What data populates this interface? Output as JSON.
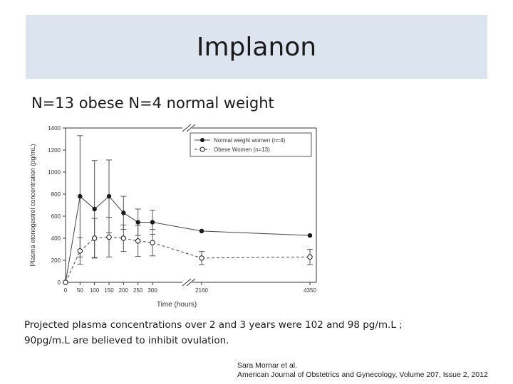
{
  "slide": {
    "title": "Implanon",
    "subtitle": "N=13 obese N=4 normal weight",
    "caption_line1": "Projected plasma concentrations over 2 and 3 years were 102 and 98 pg/m.L ;",
    "caption_line2": "90pg/m.L are believed to  inhibit ovulation.",
    "citation_line1": "Sara  Mornar et al.",
    "citation_line2": "American Journal of Obstetrics and Gynecology, Volume 207, Issue 2, 2012"
  },
  "chart_data": {
    "type": "line",
    "xlabel": "Time (hours)",
    "ylabel": "Plasma etonogestrel concentration (pg/mL)",
    "x_ticks": [
      "0",
      "50",
      "100",
      "150",
      "200",
      "250",
      "300",
      "2160",
      "4350"
    ],
    "y_ticks": [
      "0",
      "200",
      "400",
      "600",
      "800",
      "1000",
      "1200",
      "1400"
    ],
    "ylim": [
      0,
      1400
    ],
    "axis_break": "between 300 and 2160",
    "legend_position": "top-right",
    "grid": false,
    "series": [
      {
        "name": "Normal weight women (n=4)",
        "marker": "filled-circle",
        "color": "#1a1a1a",
        "x": [
          0,
          50,
          100,
          150,
          200,
          250,
          300,
          2160,
          4350
        ],
        "y": [
          0,
          780,
          665,
          780,
          630,
          545,
          545,
          465,
          425
        ],
        "err": [
          0,
          550,
          440,
          330,
          150,
          120,
          110,
          0,
          0
        ]
      },
      {
        "name": "Obese Women (n=13)",
        "marker": "open-circle",
        "color": "#1a1a1a",
        "x": [
          0,
          50,
          100,
          150,
          200,
          250,
          300,
          2160,
          4350
        ],
        "y": [
          0,
          285,
          400,
          410,
          400,
          375,
          360,
          220,
          230
        ],
        "err": [
          0,
          120,
          180,
          180,
          120,
          140,
          120,
          60,
          70
        ]
      }
    ]
  }
}
